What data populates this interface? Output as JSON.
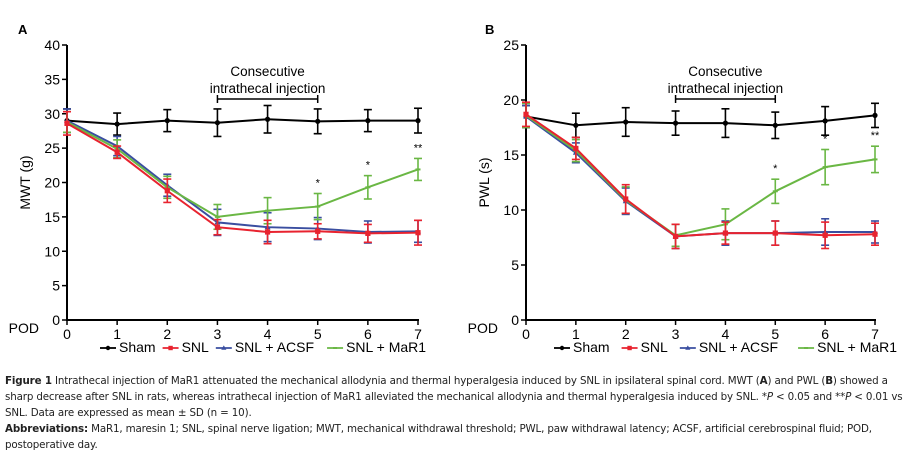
{
  "chart_data": [
    {
      "type": "line",
      "panel_label": "A",
      "title": "",
      "xlabel": "POD",
      "ylabel": "MWT (g)",
      "x": [
        0,
        1,
        2,
        3,
        4,
        5,
        6,
        7
      ],
      "xticks": [
        "0",
        "1",
        "2",
        "3",
        "4",
        "5",
        "6",
        "7"
      ],
      "ylim": [
        0,
        40
      ],
      "yticks": [
        "0",
        "5",
        "10",
        "15",
        "20",
        "25",
        "30",
        "35",
        "40"
      ],
      "grid": false,
      "legend_position": "bottom",
      "annotation": {
        "text_line1": "Consecutive",
        "text_line2": "intrathecal injection",
        "x_range": [
          3,
          5
        ]
      },
      "significance": [
        {
          "x": 5,
          "label": "*"
        },
        {
          "x": 6,
          "label": "*"
        },
        {
          "x": 7,
          "label": "**"
        }
      ],
      "series": [
        {
          "name": "Sham",
          "color": "#000000",
          "marker": "circle",
          "values": [
            29.0,
            28.5,
            29.0,
            28.7,
            29.2,
            28.9,
            29.0,
            29.0
          ],
          "sd": [
            1.7,
            1.6,
            1.6,
            2.0,
            2.0,
            1.8,
            1.6,
            1.8
          ]
        },
        {
          "name": "SNL",
          "color": "#e8232f",
          "marker": "square",
          "values": [
            28.6,
            24.4,
            18.8,
            13.5,
            12.8,
            12.9,
            12.6,
            12.7
          ],
          "sd": [
            1.7,
            0.9,
            1.7,
            1.1,
            1.7,
            1.1,
            1.3,
            1.8
          ]
        },
        {
          "name": "SNL + ACSF",
          "color": "#3a4ea0",
          "marker": "triangle",
          "values": [
            29.0,
            25.3,
            19.6,
            14.2,
            13.5,
            13.3,
            12.8,
            12.9
          ],
          "sd": [
            1.7,
            1.4,
            1.6,
            1.9,
            2.1,
            1.6,
            1.6,
            1.6
          ]
        },
        {
          "name": "SNL + MaR1",
          "color": "#6ab744",
          "marker": "dash",
          "values": [
            28.8,
            24.9,
            19.3,
            15.0,
            15.9,
            16.5,
            19.3,
            21.9
          ],
          "sd": [
            1.5,
            1.3,
            1.6,
            1.8,
            1.9,
            1.9,
            1.7,
            1.6
          ]
        }
      ]
    },
    {
      "type": "line",
      "panel_label": "B",
      "title": "",
      "xlabel": "POD",
      "ylabel": "PWL (s)",
      "x": [
        0,
        1,
        2,
        3,
        4,
        5,
        6,
        7
      ],
      "xticks": [
        "0",
        "1",
        "2",
        "3",
        "4",
        "5",
        "6",
        "7"
      ],
      "ylim": [
        0,
        25
      ],
      "yticks": [
        "0",
        "5",
        "10",
        "15",
        "20",
        "25"
      ],
      "grid": false,
      "legend_position": "bottom",
      "annotation": {
        "text_line1": "Consecutive",
        "text_line2": "intrathecal injection",
        "x_range": [
          3,
          5
        ]
      },
      "significance": [
        {
          "x": 5,
          "label": "*"
        },
        {
          "x": 6,
          "label": "*"
        },
        {
          "x": 7,
          "label": "**"
        }
      ],
      "series": [
        {
          "name": "Sham",
          "color": "#000000",
          "marker": "circle",
          "values": [
            18.5,
            17.7,
            18.0,
            17.9,
            17.9,
            17.7,
            18.1,
            18.6
          ],
          "sd": [
            1.0,
            1.1,
            1.3,
            1.1,
            1.3,
            1.2,
            1.3,
            1.1
          ]
        },
        {
          "name": "SNL",
          "color": "#e8232f",
          "marker": "square",
          "values": [
            18.7,
            15.6,
            11.0,
            7.6,
            7.9,
            7.9,
            7.7,
            7.8
          ],
          "sd": [
            1.1,
            1.0,
            1.3,
            1.1,
            1.0,
            1.1,
            1.2,
            1.0
          ]
        },
        {
          "name": "SNL + ACSF",
          "color": "#3a4ea0",
          "marker": "triangle",
          "values": [
            18.5,
            15.2,
            10.8,
            7.6,
            7.9,
            7.9,
            8.0,
            8.0
          ],
          "sd": [
            1.0,
            0.9,
            1.2,
            1.1,
            1.1,
            1.1,
            1.2,
            1.0
          ]
        },
        {
          "name": "SNL + MaR1",
          "color": "#6ab744",
          "marker": "dash",
          "values": [
            18.6,
            15.4,
            10.9,
            7.7,
            8.7,
            11.7,
            13.9,
            14.6
          ],
          "sd": [
            1.1,
            1.0,
            1.2,
            1.0,
            1.4,
            1.1,
            1.6,
            1.2
          ]
        }
      ]
    }
  ],
  "caption": {
    "figure_label": "Figure 1",
    "figure_text_1": " Intrathecal injection of MaR1 attenuated the mechanical allodynia and thermal hyperalgesia induced by SNL in ipsilateral spinal cord. MWT (",
    "bold_a": "A",
    "figure_text_2": ") and PWL (",
    "bold_b": "B",
    "figure_text_3": ") showed a sharp decrease after SNL in rats, whereas intrathecal injection of MaR1 alleviated the mechanical allodynia and thermal hyperalgesia induced by SNL. *",
    "p1": "P",
    "figure_text_4": " < 0.05 and **",
    "p2": "P",
    "figure_text_5": " < 0.01 vs SNL. Data are expressed as mean ± SD (n = 10).",
    "abbr_label": "Abbreviations:",
    "abbr_text": " MaR1, maresin 1; SNL, spinal nerve ligation; MWT, mechanical withdrawal threshold; PWL, paw withdrawal latency; ACSF, artificial cerebrospinal fluid; POD, postoperative day."
  }
}
